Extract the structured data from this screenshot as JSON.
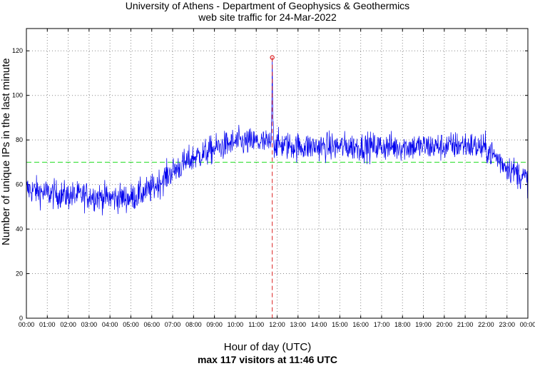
{
  "chart_data": {
    "type": "line",
    "title": "University of Athens - Department of Geophysics & Geothermics",
    "subtitle": "web site traffic for 24-Mar-2022",
    "xlabel": "Hour of day (UTC)",
    "summary": "max 117 visitors at 11:46 UTC",
    "ylabel": "Number of unique IPs in the last minute",
    "xlim_hours": [
      0,
      24
    ],
    "ylim": [
      0,
      130
    ],
    "yticks": [
      0,
      20,
      40,
      60,
      80,
      100,
      120
    ],
    "xtick_labels": [
      "00:00",
      "01:00",
      "02:00",
      "03:00",
      "04:00",
      "05:00",
      "06:00",
      "07:00",
      "08:00",
      "09:00",
      "10:00",
      "11:00",
      "12:00",
      "13:00",
      "14:00",
      "15:00",
      "16:00",
      "17:00",
      "18:00",
      "19:00",
      "20:00",
      "21:00",
      "22:00",
      "23:00",
      "00:00"
    ],
    "grid": true,
    "mean_line": 70,
    "max": {
      "value": 117,
      "hour": 11.7667,
      "time": "11:46"
    },
    "series": [
      {
        "color": "#0000ee",
        "hourly_trend": [
          {
            "hour": 0,
            "value": 58
          },
          {
            "hour": 1,
            "value": 56
          },
          {
            "hour": 2,
            "value": 55
          },
          {
            "hour": 3,
            "value": 55
          },
          {
            "hour": 4,
            "value": 54
          },
          {
            "hour": 5,
            "value": 54
          },
          {
            "hour": 6,
            "value": 58
          },
          {
            "hour": 7,
            "value": 66
          },
          {
            "hour": 8,
            "value": 72
          },
          {
            "hour": 9,
            "value": 76
          },
          {
            "hour": 10,
            "value": 79
          },
          {
            "hour": 11,
            "value": 79
          },
          {
            "hour": 12,
            "value": 78
          },
          {
            "hour": 13,
            "value": 77
          },
          {
            "hour": 14,
            "value": 77
          },
          {
            "hour": 15,
            "value": 77
          },
          {
            "hour": 16,
            "value": 77
          },
          {
            "hour": 17,
            "value": 77
          },
          {
            "hour": 18,
            "value": 77
          },
          {
            "hour": 19,
            "value": 77
          },
          {
            "hour": 20,
            "value": 77
          },
          {
            "hour": 21,
            "value": 78
          },
          {
            "hour": 22,
            "value": 76
          },
          {
            "hour": 23,
            "value": 68
          },
          {
            "hour": 24,
            "value": 62
          }
        ]
      }
    ],
    "colors": {
      "series": "#0000ee",
      "mean": "#22dd22",
      "max_marker": "#dd2222",
      "grid": "#888888"
    }
  }
}
